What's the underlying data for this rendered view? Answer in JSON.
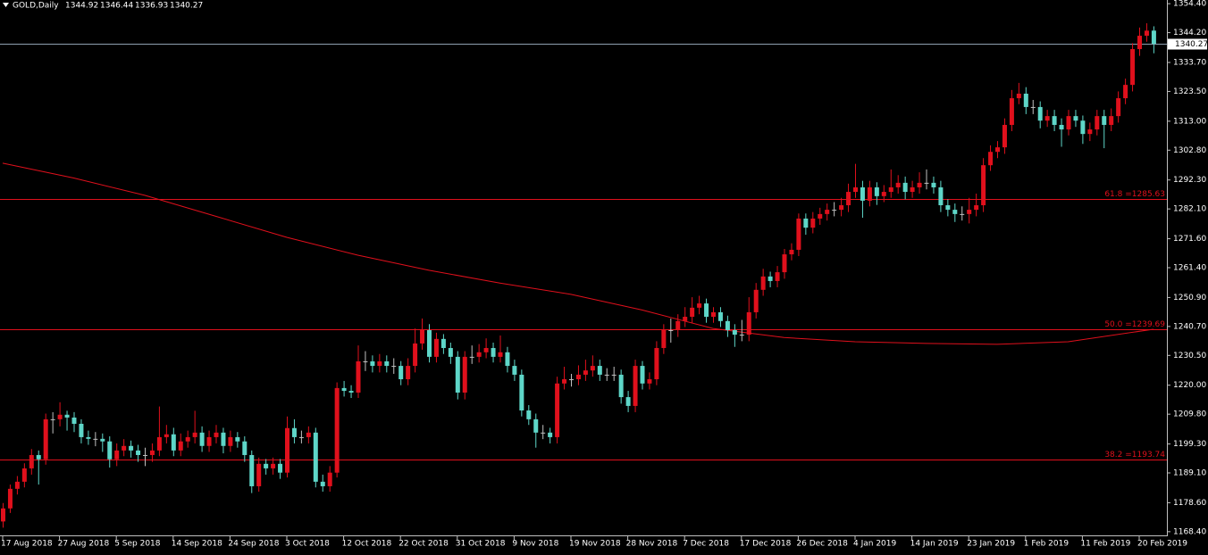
{
  "chart_data": {
    "type": "candlestick",
    "symbol": "GOLD,Daily",
    "up_color": "#e0101c",
    "down_color": "#5ed6c8",
    "ylim": [
      1167.1,
      1355.7
    ],
    "yticks": [
      {
        "value": 1354.4,
        "label": "1354.40"
      },
      {
        "value": 1344.2,
        "label": "1344.20"
      },
      {
        "value": 1333.7,
        "label": "1333.70"
      },
      {
        "value": 1323.5,
        "label": "1323.50"
      },
      {
        "value": 1313.0,
        "label": "1313.00"
      },
      {
        "value": 1302.8,
        "label": "1302.80"
      },
      {
        "value": 1292.3,
        "label": "1292.30"
      },
      {
        "value": 1282.1,
        "label": "1282.10"
      },
      {
        "value": 1271.6,
        "label": "1271.60"
      },
      {
        "value": 1261.4,
        "label": "1261.40"
      },
      {
        "value": 1250.9,
        "label": "1250.90"
      },
      {
        "value": 1240.7,
        "label": "1240.70"
      },
      {
        "value": 1230.5,
        "label": "1230.50"
      },
      {
        "value": 1220.0,
        "label": "1220.00"
      },
      {
        "value": 1209.8,
        "label": "1209.80"
      },
      {
        "value": 1199.3,
        "label": "1199.30"
      },
      {
        "value": 1189.1,
        "label": "1189.10"
      },
      {
        "value": 1178.6,
        "label": "1178.60"
      },
      {
        "value": 1168.4,
        "label": "1168.40"
      }
    ],
    "xticks": [
      {
        "value": 0,
        "label": "17 Aug 2018"
      },
      {
        "value": 8,
        "label": "27 Aug 2018"
      },
      {
        "value": 16,
        "label": "5 Sep 2018"
      },
      {
        "value": 24,
        "label": "14 Sep 2018"
      },
      {
        "value": 32,
        "label": "24 Sep 2018"
      },
      {
        "value": 40,
        "label": "3 Oct 2018"
      },
      {
        "value": 48,
        "label": "12 Oct 2018"
      },
      {
        "value": 56,
        "label": "22 Oct 2018"
      },
      {
        "value": 64,
        "label": "31 Oct 2018"
      },
      {
        "value": 72,
        "label": "9 Nov 2018"
      },
      {
        "value": 80,
        "label": "19 Nov 2018"
      },
      {
        "value": 88,
        "label": "28 Nov 2018"
      },
      {
        "value": 96,
        "label": "7 Dec 2018"
      },
      {
        "value": 104,
        "label": "17 Dec 2018"
      },
      {
        "value": 112,
        "label": "26 Dec 2018"
      },
      {
        "value": 120,
        "label": "4 Jan 2019"
      },
      {
        "value": 128,
        "label": "14 Jan 2019"
      },
      {
        "value": 136,
        "label": "23 Jan 2019"
      },
      {
        "value": 144,
        "label": "1 Feb 2019"
      },
      {
        "value": 152,
        "label": "11 Feb 2019"
      },
      {
        "value": 160,
        "label": "20 Feb 2019"
      }
    ],
    "bid": 1340.27,
    "levels": [
      {
        "value": 1285.63,
        "label": "61.8 =1285.63"
      },
      {
        "value": 1239.69,
        "label": "50.0 =1239.69"
      },
      {
        "value": 1193.74,
        "label": "38.2 =1193.74"
      }
    ],
    "ma": {
      "color": "#e0101c",
      "x": [
        0,
        10,
        20,
        30,
        40,
        50,
        60,
        70,
        80,
        90,
        100,
        110,
        120,
        130,
        140,
        150,
        162
      ],
      "values": [
        1298.2,
        1293.0,
        1286.9,
        1279.5,
        1272.1,
        1265.8,
        1260.5,
        1256.0,
        1252.0,
        1246.5,
        1240.0,
        1236.8,
        1235.3,
        1234.7,
        1234.4,
        1235.3,
        1239.7
      ]
    },
    "ohlc": [
      [
        1172.0,
        1178.5,
        1169.8,
        1176.6
      ],
      [
        1176.6,
        1185.0,
        1175.0,
        1183.5
      ],
      [
        1183.5,
        1188.0,
        1181.5,
        1186.0
      ],
      [
        1186.0,
        1192.5,
        1184.0,
        1190.7
      ],
      [
        1190.7,
        1197.5,
        1188.5,
        1195.4
      ],
      [
        1195.4,
        1197.0,
        1185.0,
        1193.9
      ],
      [
        1193.9,
        1210.0,
        1192.0,
        1208.0
      ],
      [
        1208.0,
        1210.5,
        1203.0,
        1208.0
      ],
      [
        1208.0,
        1214.0,
        1205.5,
        1209.6
      ],
      [
        1209.6,
        1211.0,
        1204.0,
        1208.6
      ],
      [
        1208.6,
        1210.5,
        1203.5,
        1206.4
      ],
      [
        1206.4,
        1208.0,
        1199.5,
        1201.7
      ],
      [
        1201.7,
        1204.0,
        1199.0,
        1201.1
      ],
      [
        1201.1,
        1203.5,
        1198.5,
        1201.1
      ],
      [
        1201.1,
        1203.0,
        1196.5,
        1200.2
      ],
      [
        1200.2,
        1202.0,
        1191.0,
        1193.9
      ],
      [
        1193.9,
        1199.5,
        1191.5,
        1197.0
      ],
      [
        1197.0,
        1201.0,
        1195.0,
        1198.6
      ],
      [
        1198.6,
        1200.5,
        1194.5,
        1197.0
      ],
      [
        1197.0,
        1199.0,
        1193.0,
        1195.4
      ],
      [
        1195.4,
        1198.0,
        1191.5,
        1195.4
      ],
      [
        1195.4,
        1199.5,
        1193.0,
        1197.0
      ],
      [
        1197.0,
        1212.5,
        1195.0,
        1201.7
      ],
      [
        1201.7,
        1206.0,
        1199.5,
        1202.7
      ],
      [
        1202.7,
        1205.0,
        1195.0,
        1197.0
      ],
      [
        1197.0,
        1203.0,
        1195.0,
        1200.2
      ],
      [
        1200.2,
        1204.0,
        1198.0,
        1201.7
      ],
      [
        1201.7,
        1211.0,
        1199.5,
        1203.3
      ],
      [
        1203.3,
        1205.5,
        1196.5,
        1198.6
      ],
      [
        1198.6,
        1204.0,
        1196.5,
        1201.7
      ],
      [
        1201.7,
        1206.0,
        1199.5,
        1203.3
      ],
      [
        1203.3,
        1205.0,
        1196.0,
        1198.6
      ],
      [
        1198.6,
        1204.0,
        1196.5,
        1201.7
      ],
      [
        1201.7,
        1203.5,
        1198.0,
        1200.2
      ],
      [
        1200.2,
        1202.0,
        1193.0,
        1195.4
      ],
      [
        1195.4,
        1197.0,
        1182.0,
        1184.4
      ],
      [
        1184.4,
        1194.5,
        1182.5,
        1192.3
      ],
      [
        1192.3,
        1194.0,
        1188.5,
        1190.7
      ],
      [
        1190.7,
        1194.5,
        1188.5,
        1192.3
      ],
      [
        1192.3,
        1194.0,
        1187.0,
        1189.2
      ],
      [
        1189.2,
        1209.0,
        1187.5,
        1204.9
      ],
      [
        1204.9,
        1208.0,
        1199.5,
        1201.7
      ],
      [
        1201.7,
        1204.0,
        1199.5,
        1201.7
      ],
      [
        1201.7,
        1205.5,
        1199.5,
        1203.3
      ],
      [
        1203.3,
        1205.0,
        1184.0,
        1186.0
      ],
      [
        1186.0,
        1188.5,
        1182.5,
        1184.4
      ],
      [
        1184.4,
        1191.5,
        1182.5,
        1189.2
      ],
      [
        1189.2,
        1221.0,
        1187.5,
        1219.0
      ],
      [
        1219.0,
        1221.5,
        1216.0,
        1218.0
      ],
      [
        1218.0,
        1220.0,
        1215.5,
        1217.4
      ],
      [
        1217.4,
        1234.0,
        1215.5,
        1228.4
      ],
      [
        1228.4,
        1232.0,
        1225.0,
        1228.4
      ],
      [
        1228.4,
        1230.5,
        1224.5,
        1226.8
      ],
      [
        1226.8,
        1231.0,
        1224.5,
        1228.4
      ],
      [
        1228.4,
        1230.5,
        1224.5,
        1226.8
      ],
      [
        1226.8,
        1229.5,
        1224.0,
        1226.8
      ],
      [
        1226.8,
        1228.5,
        1220.0,
        1222.1
      ],
      [
        1222.1,
        1229.5,
        1220.0,
        1226.8
      ],
      [
        1226.8,
        1240.0,
        1224.5,
        1234.7
      ],
      [
        1234.7,
        1243.5,
        1232.5,
        1239.4
      ],
      [
        1239.4,
        1241.5,
        1228.0,
        1230.0
      ],
      [
        1230.0,
        1238.5,
        1228.0,
        1236.3
      ],
      [
        1236.3,
        1238.0,
        1231.0,
        1233.1
      ],
      [
        1233.1,
        1235.0,
        1227.5,
        1230.0
      ],
      [
        1230.0,
        1232.0,
        1215.0,
        1217.4
      ],
      [
        1217.4,
        1232.0,
        1215.0,
        1230.0
      ],
      [
        1230.0,
        1234.0,
        1227.5,
        1230.0
      ],
      [
        1230.0,
        1234.5,
        1228.0,
        1231.6
      ],
      [
        1231.6,
        1236.5,
        1229.5,
        1233.1
      ],
      [
        1233.1,
        1235.0,
        1228.0,
        1230.0
      ],
      [
        1230.0,
        1237.5,
        1228.0,
        1231.6
      ],
      [
        1231.6,
        1233.5,
        1224.5,
        1226.8
      ],
      [
        1226.8,
        1229.0,
        1221.5,
        1223.7
      ],
      [
        1223.7,
        1225.5,
        1209.0,
        1211.1
      ],
      [
        1211.1,
        1213.0,
        1206.0,
        1208.0
      ],
      [
        1208.0,
        1210.0,
        1198.0,
        1203.3
      ],
      [
        1203.3,
        1206.0,
        1201.0,
        1203.3
      ],
      [
        1203.3,
        1205.0,
        1199.5,
        1201.7
      ],
      [
        1201.7,
        1223.0,
        1199.5,
        1220.6
      ],
      [
        1220.6,
        1226.5,
        1218.5,
        1222.1
      ],
      [
        1222.1,
        1224.0,
        1219.5,
        1222.1
      ],
      [
        1222.1,
        1227.0,
        1220.0,
        1223.7
      ],
      [
        1223.7,
        1229.0,
        1221.5,
        1225.2
      ],
      [
        1225.2,
        1230.5,
        1223.0,
        1226.8
      ],
      [
        1226.8,
        1229.0,
        1221.5,
        1223.7
      ],
      [
        1223.7,
        1226.0,
        1221.5,
        1223.7
      ],
      [
        1223.7,
        1226.5,
        1221.5,
        1223.7
      ],
      [
        1223.7,
        1225.5,
        1213.5,
        1215.8
      ],
      [
        1215.8,
        1218.0,
        1210.5,
        1212.7
      ],
      [
        1212.7,
        1229.0,
        1210.5,
        1226.8
      ],
      [
        1226.8,
        1228.5,
        1218.5,
        1220.6
      ],
      [
        1220.6,
        1224.5,
        1218.5,
        1222.1
      ],
      [
        1222.1,
        1235.5,
        1220.0,
        1233.1
      ],
      [
        1233.1,
        1241.5,
        1231.0,
        1239.4
      ],
      [
        1239.4,
        1243.5,
        1235.0,
        1239.4
      ],
      [
        1239.4,
        1245.0,
        1237.0,
        1242.6
      ],
      [
        1242.6,
        1247.5,
        1240.5,
        1244.1
      ],
      [
        1244.1,
        1251.0,
        1242.0,
        1247.3
      ],
      [
        1247.3,
        1251.5,
        1245.0,
        1248.8
      ],
      [
        1248.8,
        1250.5,
        1242.0,
        1244.1
      ],
      [
        1244.1,
        1247.5,
        1242.0,
        1245.7
      ],
      [
        1245.7,
        1247.5,
        1240.5,
        1242.6
      ],
      [
        1242.6,
        1244.5,
        1237.0,
        1239.4
      ],
      [
        1239.4,
        1241.5,
        1233.5,
        1237.8
      ],
      [
        1237.8,
        1243.0,
        1235.5,
        1237.8
      ],
      [
        1237.8,
        1251.0,
        1235.5,
        1245.7
      ],
      [
        1245.7,
        1256.0,
        1243.5,
        1253.6
      ],
      [
        1253.6,
        1261.0,
        1251.5,
        1258.3
      ],
      [
        1258.3,
        1260.0,
        1254.5,
        1256.7
      ],
      [
        1256.7,
        1262.0,
        1254.5,
        1259.8
      ],
      [
        1259.8,
        1268.0,
        1257.5,
        1266.1
      ],
      [
        1266.1,
        1270.0,
        1264.0,
        1267.7
      ],
      [
        1267.7,
        1280.5,
        1265.5,
        1278.7
      ],
      [
        1278.7,
        1280.5,
        1273.0,
        1275.5
      ],
      [
        1275.5,
        1281.0,
        1273.5,
        1278.7
      ],
      [
        1278.7,
        1282.5,
        1276.5,
        1280.3
      ],
      [
        1280.3,
        1284.0,
        1278.0,
        1281.8
      ],
      [
        1281.8,
        1284.5,
        1279.5,
        1281.8
      ],
      [
        1281.8,
        1286.0,
        1279.5,
        1283.4
      ],
      [
        1283.4,
        1291.0,
        1281.0,
        1288.1
      ],
      [
        1288.1,
        1298.0,
        1286.0,
        1289.7
      ],
      [
        1289.7,
        1292.0,
        1279.0,
        1285.0
      ],
      [
        1285.0,
        1292.0,
        1283.0,
        1289.7
      ],
      [
        1289.7,
        1291.5,
        1283.5,
        1286.6
      ],
      [
        1286.6,
        1290.5,
        1284.5,
        1288.1
      ],
      [
        1288.1,
        1296.0,
        1286.0,
        1289.7
      ],
      [
        1289.7,
        1294.0,
        1287.5,
        1291.3
      ],
      [
        1291.3,
        1293.5,
        1285.5,
        1288.1
      ],
      [
        1288.1,
        1292.0,
        1286.0,
        1289.7
      ],
      [
        1289.7,
        1295.0,
        1287.5,
        1291.3
      ],
      [
        1291.3,
        1296.0,
        1289.0,
        1291.3
      ],
      [
        1291.3,
        1293.5,
        1287.5,
        1289.7
      ],
      [
        1289.7,
        1292.0,
        1281.0,
        1283.4
      ],
      [
        1283.4,
        1285.5,
        1279.5,
        1281.8
      ],
      [
        1281.8,
        1284.0,
        1277.5,
        1280.3
      ],
      [
        1280.3,
        1283.0,
        1278.0,
        1280.3
      ],
      [
        1280.3,
        1286.0,
        1277.0,
        1281.8
      ],
      [
        1281.8,
        1287.5,
        1279.5,
        1283.4
      ],
      [
        1283.4,
        1300.0,
        1281.0,
        1297.5
      ],
      [
        1297.5,
        1304.5,
        1295.5,
        1302.2
      ],
      [
        1302.2,
        1306.0,
        1300.0,
        1303.8
      ],
      [
        1303.8,
        1314.0,
        1301.5,
        1311.7
      ],
      [
        1311.7,
        1324.0,
        1309.5,
        1321.1
      ],
      [
        1321.1,
        1326.5,
        1319.0,
        1322.7
      ],
      [
        1322.7,
        1325.0,
        1315.5,
        1318.0
      ],
      [
        1318.0,
        1320.5,
        1315.5,
        1318.0
      ],
      [
        1318.0,
        1320.0,
        1310.5,
        1313.2
      ],
      [
        1313.2,
        1317.0,
        1311.0,
        1314.8
      ],
      [
        1314.8,
        1317.0,
        1309.5,
        1311.7
      ],
      [
        1311.7,
        1314.0,
        1304.0,
        1310.1
      ],
      [
        1310.1,
        1317.0,
        1308.0,
        1314.8
      ],
      [
        1314.8,
        1317.0,
        1311.0,
        1313.2
      ],
      [
        1313.2,
        1315.0,
        1305.0,
        1308.5
      ],
      [
        1308.5,
        1312.5,
        1306.0,
        1310.1
      ],
      [
        1310.1,
        1317.0,
        1308.0,
        1314.8
      ],
      [
        1314.8,
        1317.0,
        1303.5,
        1311.7
      ],
      [
        1311.7,
        1317.5,
        1309.5,
        1314.8
      ],
      [
        1314.8,
        1323.5,
        1312.5,
        1321.1
      ],
      [
        1321.1,
        1328.0,
        1319.0,
        1325.8
      ],
      [
        1325.8,
        1340.5,
        1323.5,
        1338.4
      ],
      [
        1338.4,
        1346.0,
        1336.0,
        1343.1
      ],
      [
        1343.1,
        1347.5,
        1341.0,
        1344.9
      ],
      [
        1344.92,
        1346.44,
        1336.93,
        1340.27
      ]
    ]
  }
}
